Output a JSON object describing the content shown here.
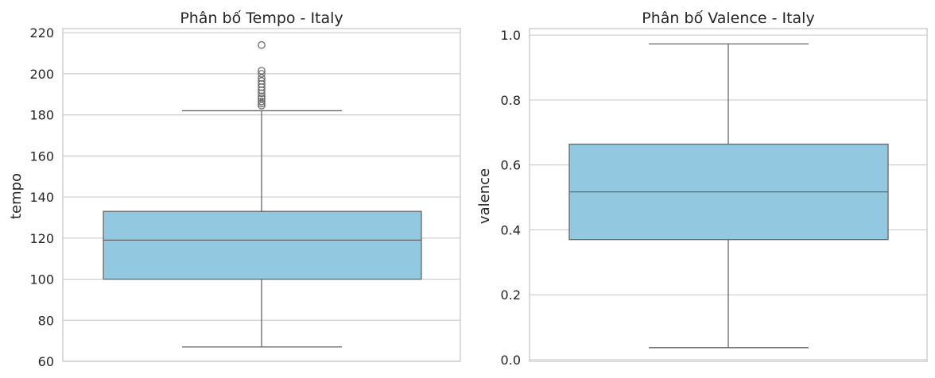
{
  "chart_data": [
    {
      "type": "boxplot",
      "title": "Phân bố Tempo - Italy",
      "xlabel": "",
      "ylabel": "tempo",
      "ylim": [
        60,
        222
      ],
      "yticks": [
        60,
        80,
        100,
        120,
        140,
        160,
        180,
        200,
        220
      ],
      "grid": true,
      "box": {
        "whisker_low": 67,
        "q1": 100,
        "median": 119,
        "q3": 133,
        "whisker_high": 182,
        "outliers": [
          184.5,
          185.5,
          186.5,
          188,
          189,
          190.5,
          192,
          193.5,
          195,
          196.5,
          198,
          200,
          201.5,
          214
        ]
      }
    },
    {
      "type": "boxplot",
      "title": "Phân bố Valence - Italy",
      "xlabel": "",
      "ylabel": "valence",
      "ylim": [
        -0.005,
        1.02
      ],
      "yticks": [
        0.0,
        0.2,
        0.4,
        0.6,
        0.8,
        1.0
      ],
      "grid": true,
      "box": {
        "whisker_low": 0.037,
        "q1": 0.37,
        "median": 0.517,
        "q3": 0.664,
        "whisker_high": 0.973,
        "outliers": []
      }
    }
  ],
  "colors": {
    "box_fill": "#92c9e0",
    "box_line": "#666666",
    "grid": "#cccccc",
    "text": "#262626"
  }
}
